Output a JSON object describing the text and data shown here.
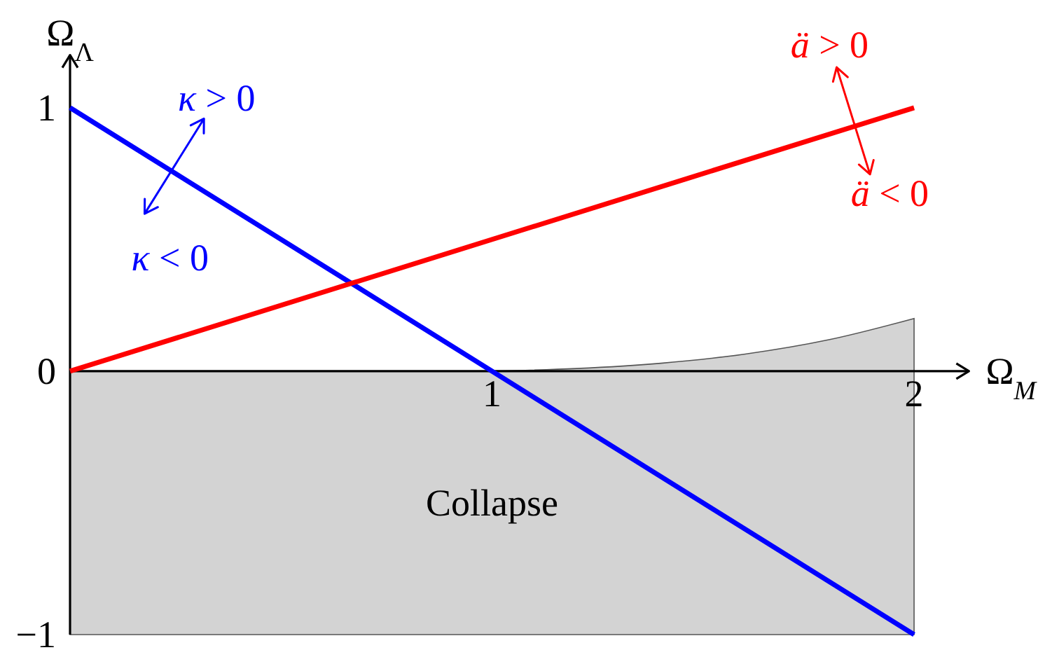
{
  "chart_data": {
    "type": "line",
    "xlabel": "Ω$_{M}$",
    "ylabel": "Ω$_{Λ}$",
    "xlim": [
      0,
      2.13
    ],
    "ylim": [
      -1,
      1.2
    ],
    "xticks": [
      1,
      2
    ],
    "yticks": [
      {
        "value": -1,
        "label": "−1"
      },
      0,
      1
    ],
    "series": [
      {
        "type": "area",
        "color": "#d3d3d3",
        "x": [
          0,
          2
        ],
        "values": [
          -1,
          -1
        ]
      },
      {
        "type": "area",
        "color": "#d4d4d4",
        "x": [
          1,
          1.2,
          1.4,
          1.6,
          1.8,
          2
        ],
        "values": [
          0,
          0.01,
          0.03,
          0.065,
          0.12,
          0.2
        ]
      },
      {
        "color": "#0000ff",
        "x": [
          0,
          2
        ],
        "values": [
          1,
          -1
        ]
      },
      {
        "color": "#ff0000",
        "x": [
          0,
          2
        ],
        "values": [
          0,
          1
        ]
      }
    ],
    "annotations": [
      {
        "text": "κ > 0",
        "x": 0.24,
        "y": 0.76
      },
      {
        "text": "κ < 0",
        "x": 0.33,
        "y": 0.67
      },
      {
        "text": "ä > 0",
        "x": 1.86,
        "y": 0.93
      },
      {
        "text": "ä < 0",
        "x": 1.89,
        "y": 0.945
      },
      "Collapse"
    ]
  }
}
